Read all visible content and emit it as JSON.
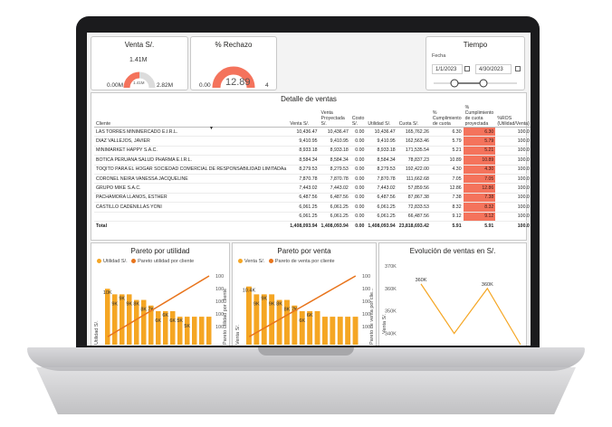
{
  "colors": {
    "accent": "#f4735c",
    "bar": "#f5a623",
    "line": "#e8741c",
    "gauge_bg": "#dcdcdc"
  },
  "kpi_ventas": {
    "title": "Venta S/.",
    "value": "1.41M",
    "inner": "1.41M",
    "min": "0.00M",
    "max": "2.82M",
    "fill": 0.5
  },
  "kpi_rechazo": {
    "title": "% Rechazo",
    "value": "12.89",
    "min": "0.00",
    "max": "4",
    "fill": 1.0
  },
  "tiempo": {
    "title": "Tiempo",
    "fecha_label": "Fecha",
    "start": "1/1/2023",
    "end": "4/30/2023",
    "slider_start": 0.25,
    "slider_end": 0.6
  },
  "detalle": {
    "title": "Detalle de ventas",
    "columns": [
      "Cliente",
      "Venta S/.",
      "Venta Proyectada S/.",
      "Costo S/.",
      "Utilidad S/.",
      "Cuota S/.",
      "% Cumplimiento de cuota",
      "% Cumplimiento de cuota proyectada",
      "%ROS (Utilidad/Venta)"
    ],
    "rows": [
      [
        "LAS TORRES MINIMERCADO E.I.R.L.",
        "10,436.47",
        "10,436.47",
        "0.00",
        "10,436.47",
        "165,762.26",
        "6.30",
        "6.30",
        "100.0"
      ],
      [
        "DIAZ VALLEJOS, JAVIER",
        "9,410.95",
        "9,410.95",
        "0.00",
        "9,410.95",
        "162,563.46",
        "5.79",
        "5.79",
        "100.0"
      ],
      [
        "MINIMARKET HAPPY S.A.C.",
        "8,933.18",
        "8,933.18",
        "0.00",
        "8,933.18",
        "171,535.54",
        "5.21",
        "5.21",
        "100.0"
      ],
      [
        "BOTICA PERUANA SALUD PHARMA E.I.R.L.",
        "8,584.34",
        "8,584.34",
        "0.00",
        "8,584.34",
        "78,837.23",
        "10.89",
        "10.89",
        "100.0"
      ],
      [
        "TOQITO PARA EL HOGAR SOCIEDAD COMERCIAL DE RESPONSABILIDAD LIMITADAa",
        "8,279.53",
        "8,279.53",
        "0.00",
        "8,279.53",
        "192,422.00",
        "4.30",
        "4.30",
        "100.0"
      ],
      [
        "CORONEL NEIRA VANESSA JACQUELINE",
        "7,870.78",
        "7,870.78",
        "0.00",
        "7,870.78",
        "111,662.68",
        "7.05",
        "7.05",
        "100.0"
      ],
      [
        "GRUPO MIKE S.A.C.",
        "7,443.02",
        "7,443.02",
        "0.00",
        "7,443.02",
        "57,859.56",
        "12.86",
        "12.86",
        "100.0"
      ],
      [
        "PACHAMORA LLANOS, ESTHER",
        "6,487.56",
        "6,487.56",
        "0.00",
        "6,487.56",
        "87,867.38",
        "7.38",
        "7.38",
        "100.0"
      ],
      [
        "CASTILLO CADENILLAS YONI",
        "6,061.25",
        "6,061.25",
        "0.00",
        "6,061.25",
        "72,833.53",
        "8.32",
        "8.32",
        "100.0"
      ],
      [
        "",
        "6,061.25",
        "6,061.25",
        "0.00",
        "6,061.25",
        "66,487.56",
        "9.12",
        "9.12",
        "100.0"
      ]
    ],
    "total": [
      "Total",
      "1,408,093.94",
      "1,408,093.94",
      "0.00",
      "1,408,093.94",
      "23,818,693.42",
      "5.91",
      "5.91",
      "100.0"
    ]
  },
  "pareto_utilidad": {
    "title": "Pareto por utilidad",
    "legend": [
      "Utilidad S/.",
      "Pareto utilidad por cliente"
    ],
    "ylabel": "Utilidad S/.",
    "y2label": "Pareto utilidad por cliente",
    "chart_data": {
      "type": "bar",
      "values": [
        10,
        9,
        9,
        9,
        8,
        8,
        7,
        6,
        6,
        6,
        5,
        5,
        5,
        5,
        5
      ],
      "labels": [
        "10K",
        "9K",
        "9K",
        "9K",
        "8K",
        "8K",
        "7K",
        "6K",
        "6K",
        "6K",
        "5K",
        "5K",
        "",
        "",
        ""
      ],
      "pareto": [
        1,
        2,
        3,
        4,
        5,
        6,
        7,
        8,
        9,
        10,
        11,
        12,
        13,
        14,
        15
      ],
      "y2_ticks": [
        "100",
        "100",
        "100",
        "100",
        "100"
      ]
    }
  },
  "pareto_venta": {
    "title": "Pareto por venta",
    "legend": [
      "Venta S/.",
      "Pareto de venta por cliente"
    ],
    "ylabel": "Venta S/.",
    "y2label": "Pareto de venta por clie...",
    "chart_data": {
      "type": "bar",
      "values": [
        10.4,
        9,
        9,
        9,
        8,
        8,
        7,
        6,
        6,
        6,
        5,
        5,
        5,
        5,
        5
      ],
      "labels": [
        "10.4K",
        "9K",
        "9K",
        "9K",
        "8K",
        "8K",
        "7K",
        "6K",
        "6K",
        "",
        "",
        "",
        "",
        "",
        ""
      ],
      "pareto": [
        1,
        2,
        3,
        4,
        5,
        6,
        7,
        8,
        9,
        10,
        11,
        12,
        13,
        14,
        15
      ],
      "y2_ticks": [
        "100",
        "100",
        "100",
        "100",
        "100"
      ]
    }
  },
  "evolucion": {
    "title": "Evolución de ventas en S/.",
    "ylabel": "Venta S/.",
    "chart_data": {
      "type": "line",
      "y_ticks": [
        "370K",
        "360K",
        "350K",
        "340K"
      ],
      "values": [
        362,
        340,
        360,
        335
      ],
      "labels": [
        "360K",
        "",
        "360K",
        ""
      ],
      "ylim": [
        335,
        372
      ]
    }
  }
}
